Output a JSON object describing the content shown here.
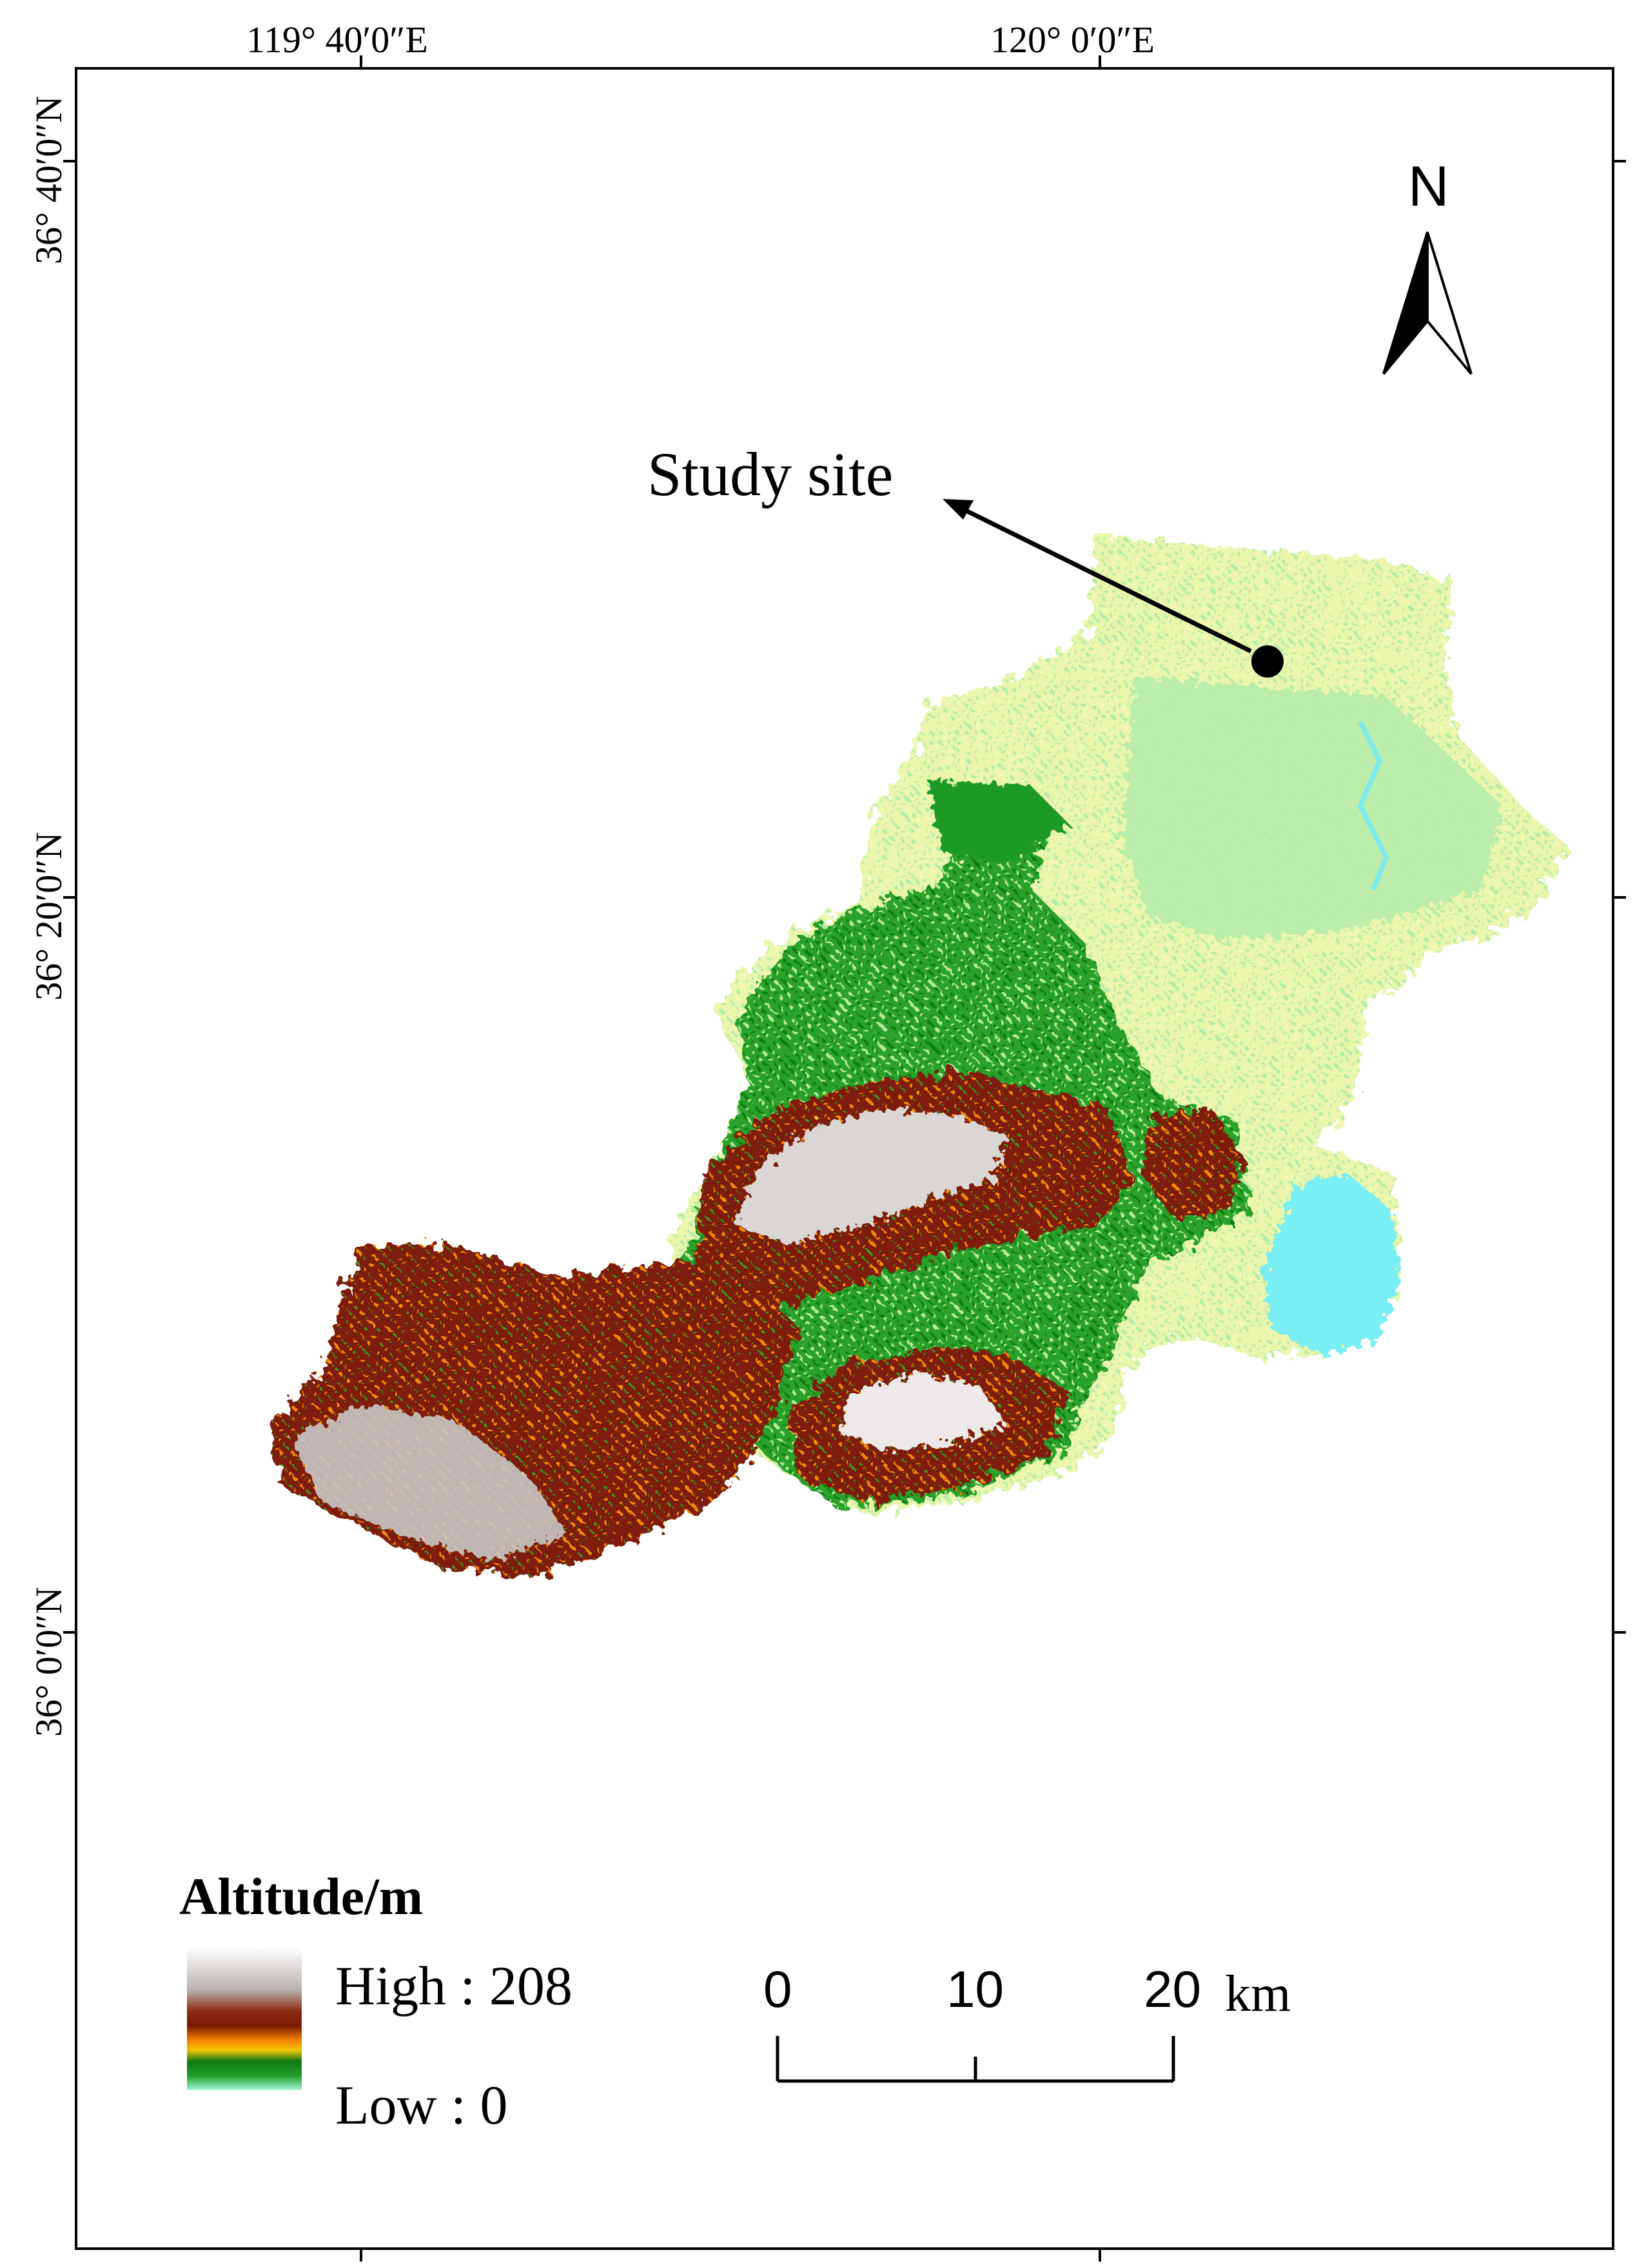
{
  "graticule": {
    "longitudes": [
      "119° 40′0″E",
      "120° 0′0″E"
    ],
    "latitudes": [
      "36° 40′0″N",
      "36° 20′0″N",
      "36° 0′0″N"
    ]
  },
  "north_arrow": {
    "letter": "N"
  },
  "annotation": {
    "label": "Study site"
  },
  "legend": {
    "title": "Altitude/m",
    "high_label": "High : 208",
    "low_label": "Low : 0",
    "range": [
      0,
      208
    ],
    "colors": [
      "#a9f5d4",
      "#1d9e28",
      "#0f7a17",
      "#f5c400",
      "#f17f00",
      "#7a1a05",
      "#8e3f2a",
      "#c9c9c9",
      "#ffffff"
    ]
  },
  "scale_bar": {
    "ticks": [
      "0",
      "10",
      "20"
    ],
    "unit": "km"
  },
  "terrain_colors": {
    "lowland_pale": "#e8f6a9",
    "lowland_green": "#aeeaa0",
    "water": "#79eef4",
    "mid_green": "#1f9a25",
    "orange": "#f08a00",
    "brown": "#7b1b06",
    "high_grey": "#d6d3d1"
  }
}
